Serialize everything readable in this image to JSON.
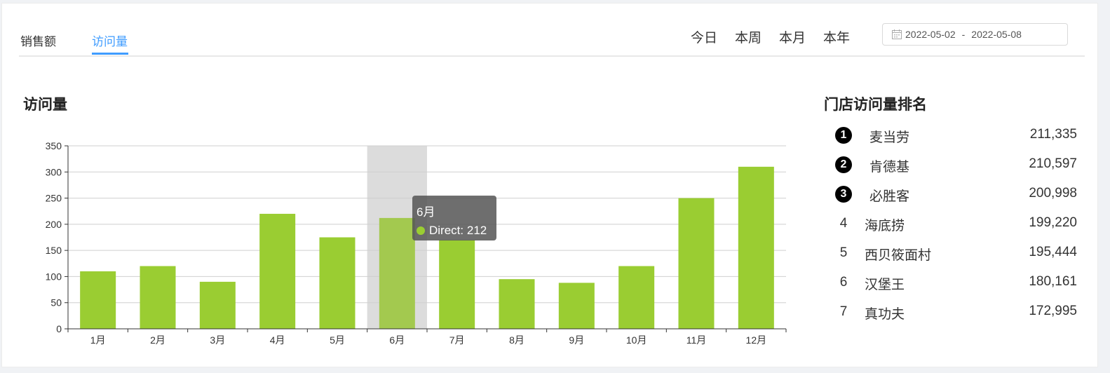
{
  "tabs": [
    "销售额",
    "访问量"
  ],
  "active_tab": 1,
  "ranges": [
    "今日",
    "本周",
    "本月",
    "本年"
  ],
  "date_range": {
    "start": "2022-05-02",
    "separator": "-",
    "end": "2022-05-08"
  },
  "chart_title": "访问量",
  "rank_title": "门店访问量排名",
  "accent_color": "#3f9cff",
  "bar_color": "#9acd32",
  "chart_data": {
    "type": "bar",
    "categories": [
      "1月",
      "2月",
      "3月",
      "4月",
      "5月",
      "6月",
      "7月",
      "8月",
      "9月",
      "10月",
      "11月",
      "12月"
    ],
    "series": [
      {
        "name": "Direct",
        "values": [
          110,
          120,
          90,
          220,
          175,
          212,
          170,
          95,
          88,
          120,
          250,
          310
        ]
      }
    ],
    "ylim": [
      0,
      350
    ],
    "yticks": [
      0,
      50,
      100,
      150,
      200,
      250,
      300,
      350
    ],
    "grid": true,
    "highlight_index": 5
  },
  "tooltip": {
    "title": "6月",
    "series": "Direct",
    "value": "212"
  },
  "ranking": [
    {
      "rank": "1",
      "name": "麦当劳",
      "value": "211,335"
    },
    {
      "rank": "2",
      "name": "肯德基",
      "value": "210,597"
    },
    {
      "rank": "3",
      "name": "必胜客",
      "value": "200,998"
    },
    {
      "rank": "4",
      "name": "海底捞",
      "value": "199,220"
    },
    {
      "rank": "5",
      "name": "西贝筱面村",
      "value": "195,444"
    },
    {
      "rank": "6",
      "name": "汉堡王",
      "value": "180,161"
    },
    {
      "rank": "7",
      "name": "真功夫",
      "value": "172,995"
    }
  ]
}
